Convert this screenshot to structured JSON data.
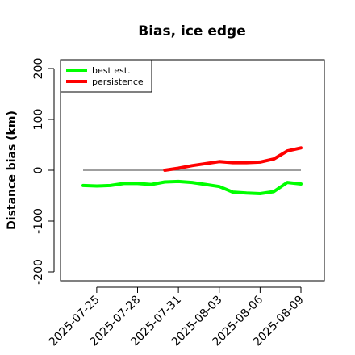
{
  "chart_data": {
    "type": "line",
    "title": "Bias, ice edge",
    "xlabel": "",
    "ylabel": "Distance bias (km)",
    "ylim": [
      -200,
      200
    ],
    "xlim": [
      "2025-07-24",
      "2025-08-10"
    ],
    "yticks": [
      "-200",
      "-100",
      "0",
      "100",
      "200"
    ],
    "xticks": [
      "2025-07-25",
      "2025-07-28",
      "2025-07-31",
      "2025-08-03",
      "2025-08-06",
      "2025-08-09"
    ],
    "reference_line": {
      "y": 0,
      "x_start": "2025-07-24",
      "x_end": "2025-08-09",
      "color": "#666666"
    },
    "legend_position": "top-left",
    "series": [
      {
        "name": "best est.",
        "color": "#00ff00",
        "points": [
          {
            "x": "2025-07-24",
            "y": -30
          },
          {
            "x": "2025-07-25",
            "y": -31
          },
          {
            "x": "2025-07-26",
            "y": -30
          },
          {
            "x": "2025-07-27",
            "y": -26
          },
          {
            "x": "2025-07-28",
            "y": -26
          },
          {
            "x": "2025-07-29",
            "y": -28
          },
          {
            "x": "2025-07-30",
            "y": -23
          },
          {
            "x": "2025-07-31",
            "y": -22
          },
          {
            "x": "2025-08-01",
            "y": -24
          },
          {
            "x": "2025-08-02",
            "y": -28
          },
          {
            "x": "2025-08-03",
            "y": -32
          },
          {
            "x": "2025-08-04",
            "y": -43
          },
          {
            "x": "2025-08-05",
            "y": -45
          },
          {
            "x": "2025-08-06",
            "y": -46
          },
          {
            "x": "2025-08-07",
            "y": -42
          },
          {
            "x": "2025-08-08",
            "y": -24
          },
          {
            "x": "2025-08-09",
            "y": -27
          }
        ]
      },
      {
        "name": "persistence",
        "color": "#ff0000",
        "points": [
          {
            "x": "2025-07-30",
            "y": 0
          },
          {
            "x": "2025-07-31",
            "y": 4
          },
          {
            "x": "2025-08-01",
            "y": 9
          },
          {
            "x": "2025-08-02",
            "y": 13
          },
          {
            "x": "2025-08-03",
            "y": 17
          },
          {
            "x": "2025-08-04",
            "y": 15
          },
          {
            "x": "2025-08-05",
            "y": 15
          },
          {
            "x": "2025-08-06",
            "y": 16
          },
          {
            "x": "2025-08-07",
            "y": 22
          },
          {
            "x": "2025-08-08",
            "y": 38
          },
          {
            "x": "2025-08-09",
            "y": 44
          }
        ]
      }
    ]
  }
}
